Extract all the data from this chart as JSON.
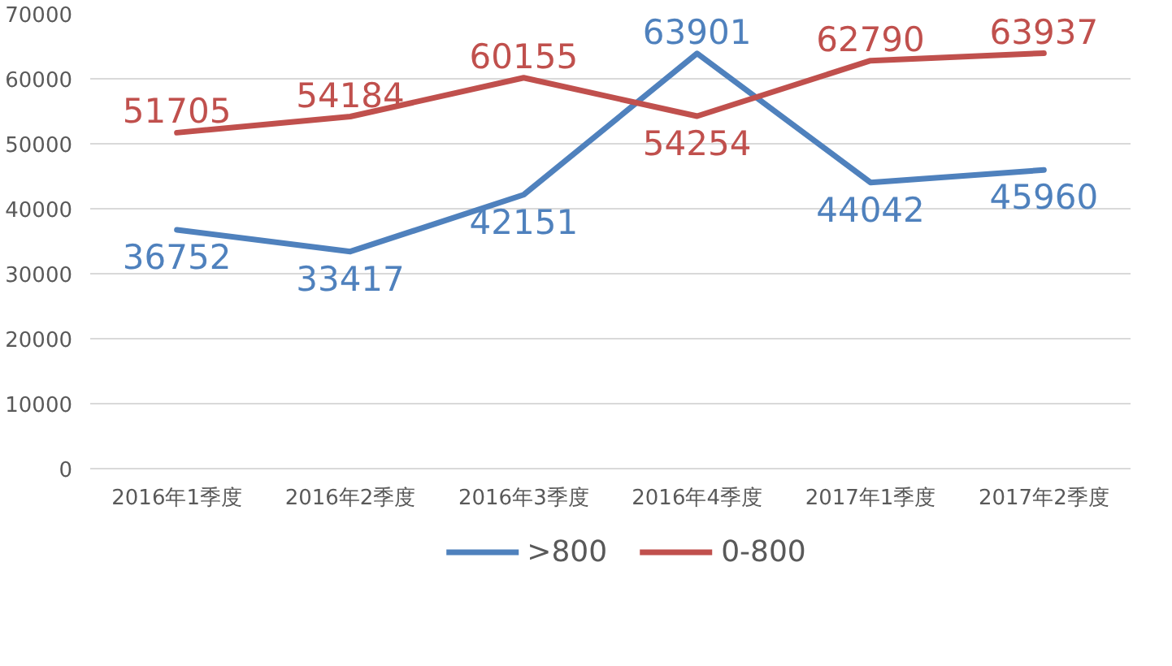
{
  "chart_data": {
    "type": "line",
    "categories": [
      "2016年1季度",
      "2016年2季度",
      "2016年3季度",
      "2016年4季度",
      "2017年1季度",
      "2017年2季度"
    ],
    "series": [
      {
        "name": ">800",
        "color": "#4f81bd",
        "values": [
          36752,
          33417,
          42151,
          63901,
          44042,
          45960
        ]
      },
      {
        "name": "0-800",
        "color": "#c0504d",
        "values": [
          51705,
          54184,
          60155,
          54254,
          62790,
          63937
        ]
      }
    ],
    "ylim": [
      0,
      70000
    ],
    "yticks": [
      0,
      10000,
      20000,
      30000,
      40000,
      50000,
      60000,
      70000
    ],
    "grid": "y",
    "legend": "bottom",
    "data_labels": true,
    "line_style": "solid",
    "marker": "none"
  }
}
